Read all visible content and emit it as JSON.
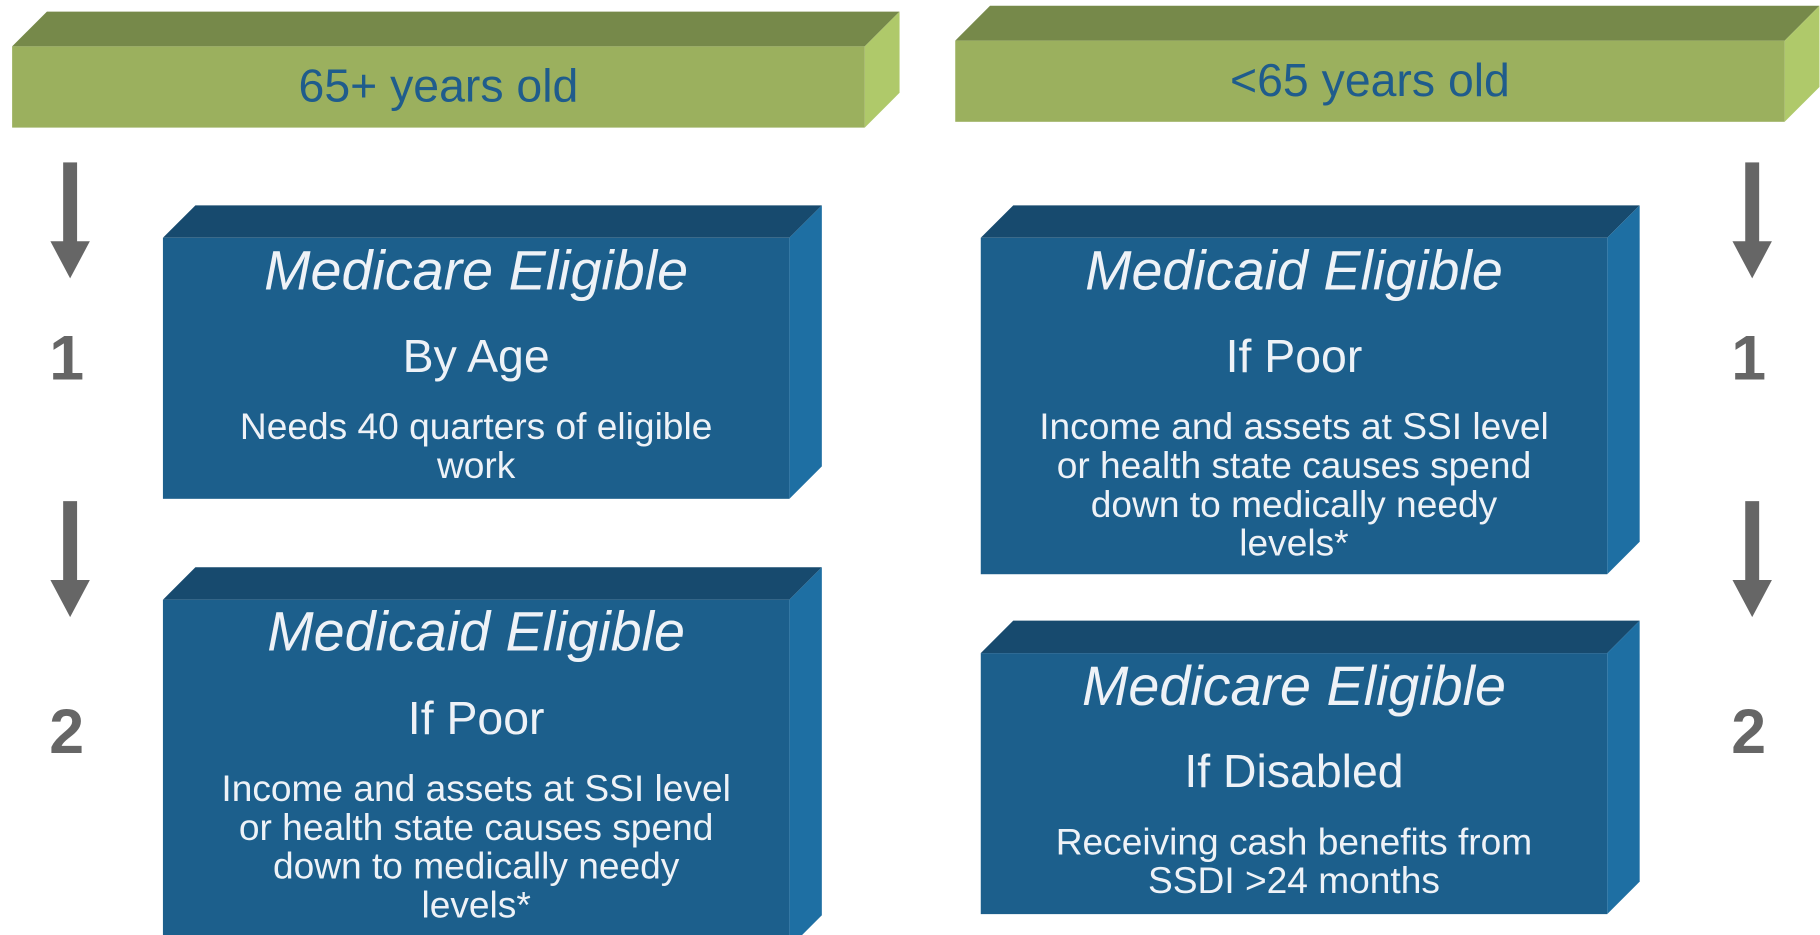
{
  "columns": [
    {
      "header": "65+ years old",
      "steps": [
        {
          "number": "1",
          "title": "Medicare Eligible",
          "subtitle": "By Age",
          "description": [
            "Needs 40 quarters of eligible",
            "work"
          ]
        },
        {
          "number": "2",
          "title": "Medicaid Eligible",
          "subtitle": "If Poor",
          "description": [
            "Income and assets at SSI level",
            "or health state causes spend",
            "down to medically needy",
            "levels*"
          ]
        }
      ]
    },
    {
      "header": "<65 years old",
      "steps": [
        {
          "number": "1",
          "title": "Medicaid Eligible",
          "subtitle": "If Poor",
          "description": [
            "Income and assets at SSI level",
            "or health state causes spend",
            "down to medically needy",
            "levels*"
          ]
        },
        {
          "number": "2",
          "title": "Medicare Eligible",
          "subtitle": "If Disabled",
          "description": [
            "Receiving cash benefits from",
            "SSDI >24 months"
          ]
        }
      ]
    }
  ]
}
